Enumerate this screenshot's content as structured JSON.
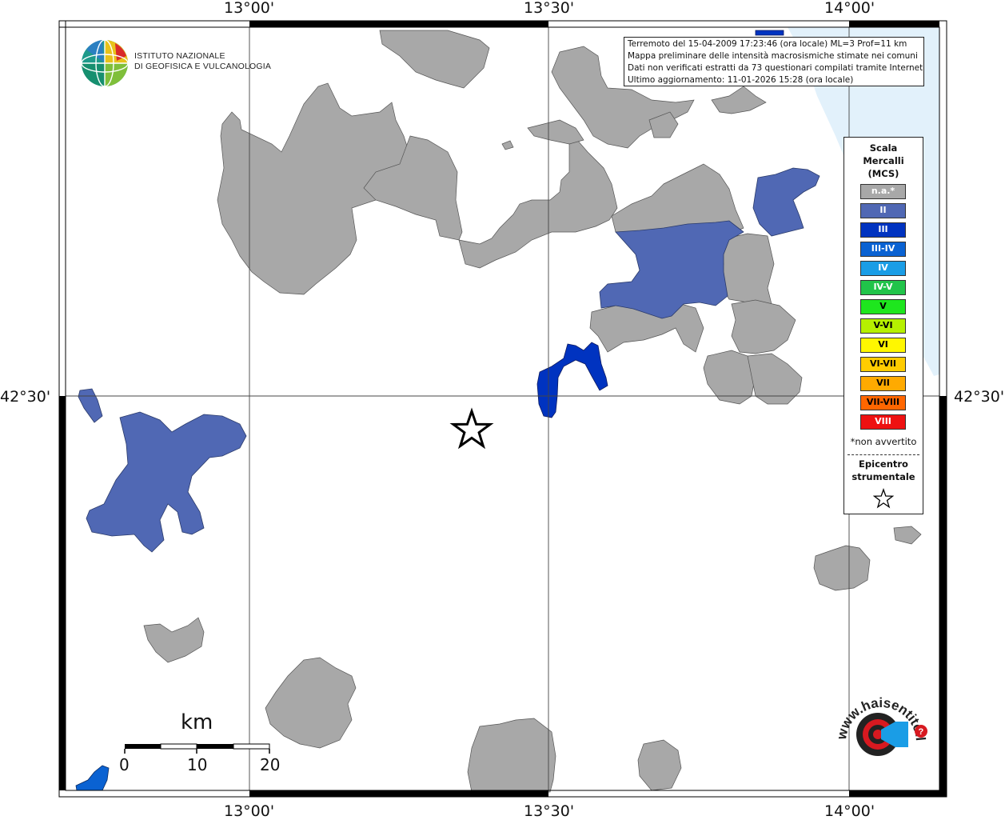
{
  "map": {
    "coordinates": {
      "top_labels": [
        "13°00'",
        "13°30'",
        "14°00'"
      ],
      "bottom_labels": [
        "13°00'",
        "13°30'",
        "14°00'"
      ],
      "left_label": "42°30'",
      "right_label": "42°30'"
    },
    "colors": {
      "not_felt": "#a8a8a8",
      "intensity_II": "#5068b4",
      "intensity_III": "#0033c0",
      "intensity_III_IV": "#0a62d2",
      "sea": "#e2f1fb",
      "frame": "#000000"
    },
    "epicenter_icon": "star-icon"
  },
  "institute": {
    "line1": "ISTITUTO NAZIONALE",
    "line2": "DI GEOFISICA E VULCANOLOGIA",
    "icon": "globe-icon"
  },
  "info_box": {
    "lines": [
      "Terremoto del 15-04-2009 17:23:46 (ora locale) ML=3 Prof=11 km",
      "Mappa preliminare delle intensità macrosismiche stimate nei comuni",
      "Dati non verificati estratti da 73 questionari compilati tramite Internet.",
      "Ultimo aggiornamento: 11-01-2026 15:28 (ora locale)"
    ]
  },
  "legend": {
    "title": [
      "Scala",
      "Mercalli",
      "(MCS)"
    ],
    "items": [
      {
        "label": "n.a.*",
        "color": "#a8a8a8",
        "text_color": "#ffffff"
      },
      {
        "label": "II",
        "color": "#5068b4",
        "text_color": "#ffffff"
      },
      {
        "label": "III",
        "color": "#0033c0",
        "text_color": "#ffffff"
      },
      {
        "label": "III-IV",
        "color": "#0a62d2",
        "text_color": "#ffffff"
      },
      {
        "label": "IV",
        "color": "#1a9de6",
        "text_color": "#ffffff"
      },
      {
        "label": "IV-V",
        "color": "#21c44a",
        "text_color": "#ffffff"
      },
      {
        "label": "V",
        "color": "#1ee61e",
        "text_color": "#000000"
      },
      {
        "label": "V-VI",
        "color": "#b6f000",
        "text_color": "#000000"
      },
      {
        "label": "VI",
        "color": "#fff700",
        "text_color": "#000000"
      },
      {
        "label": "VI-VII",
        "color": "#ffcc00",
        "text_color": "#000000"
      },
      {
        "label": "VII",
        "color": "#ffaa00",
        "text_color": "#000000"
      },
      {
        "label": "VII-VIII",
        "color": "#ff6600",
        "text_color": "#000000"
      },
      {
        "label": "VIII",
        "color": "#ee1111",
        "text_color": "#ffffff"
      }
    ],
    "note": "*non avvertito",
    "epicenter_title": [
      "Epicentro",
      "strumentale"
    ],
    "epicenter_icon": "star-icon"
  },
  "scale_bar": {
    "unit": "km",
    "ticks": [
      "0",
      "10",
      "20"
    ]
  },
  "hsi_logo": {
    "text": "www.haisentitoilterremoto.it",
    "icon": "target-speaker-icon"
  }
}
